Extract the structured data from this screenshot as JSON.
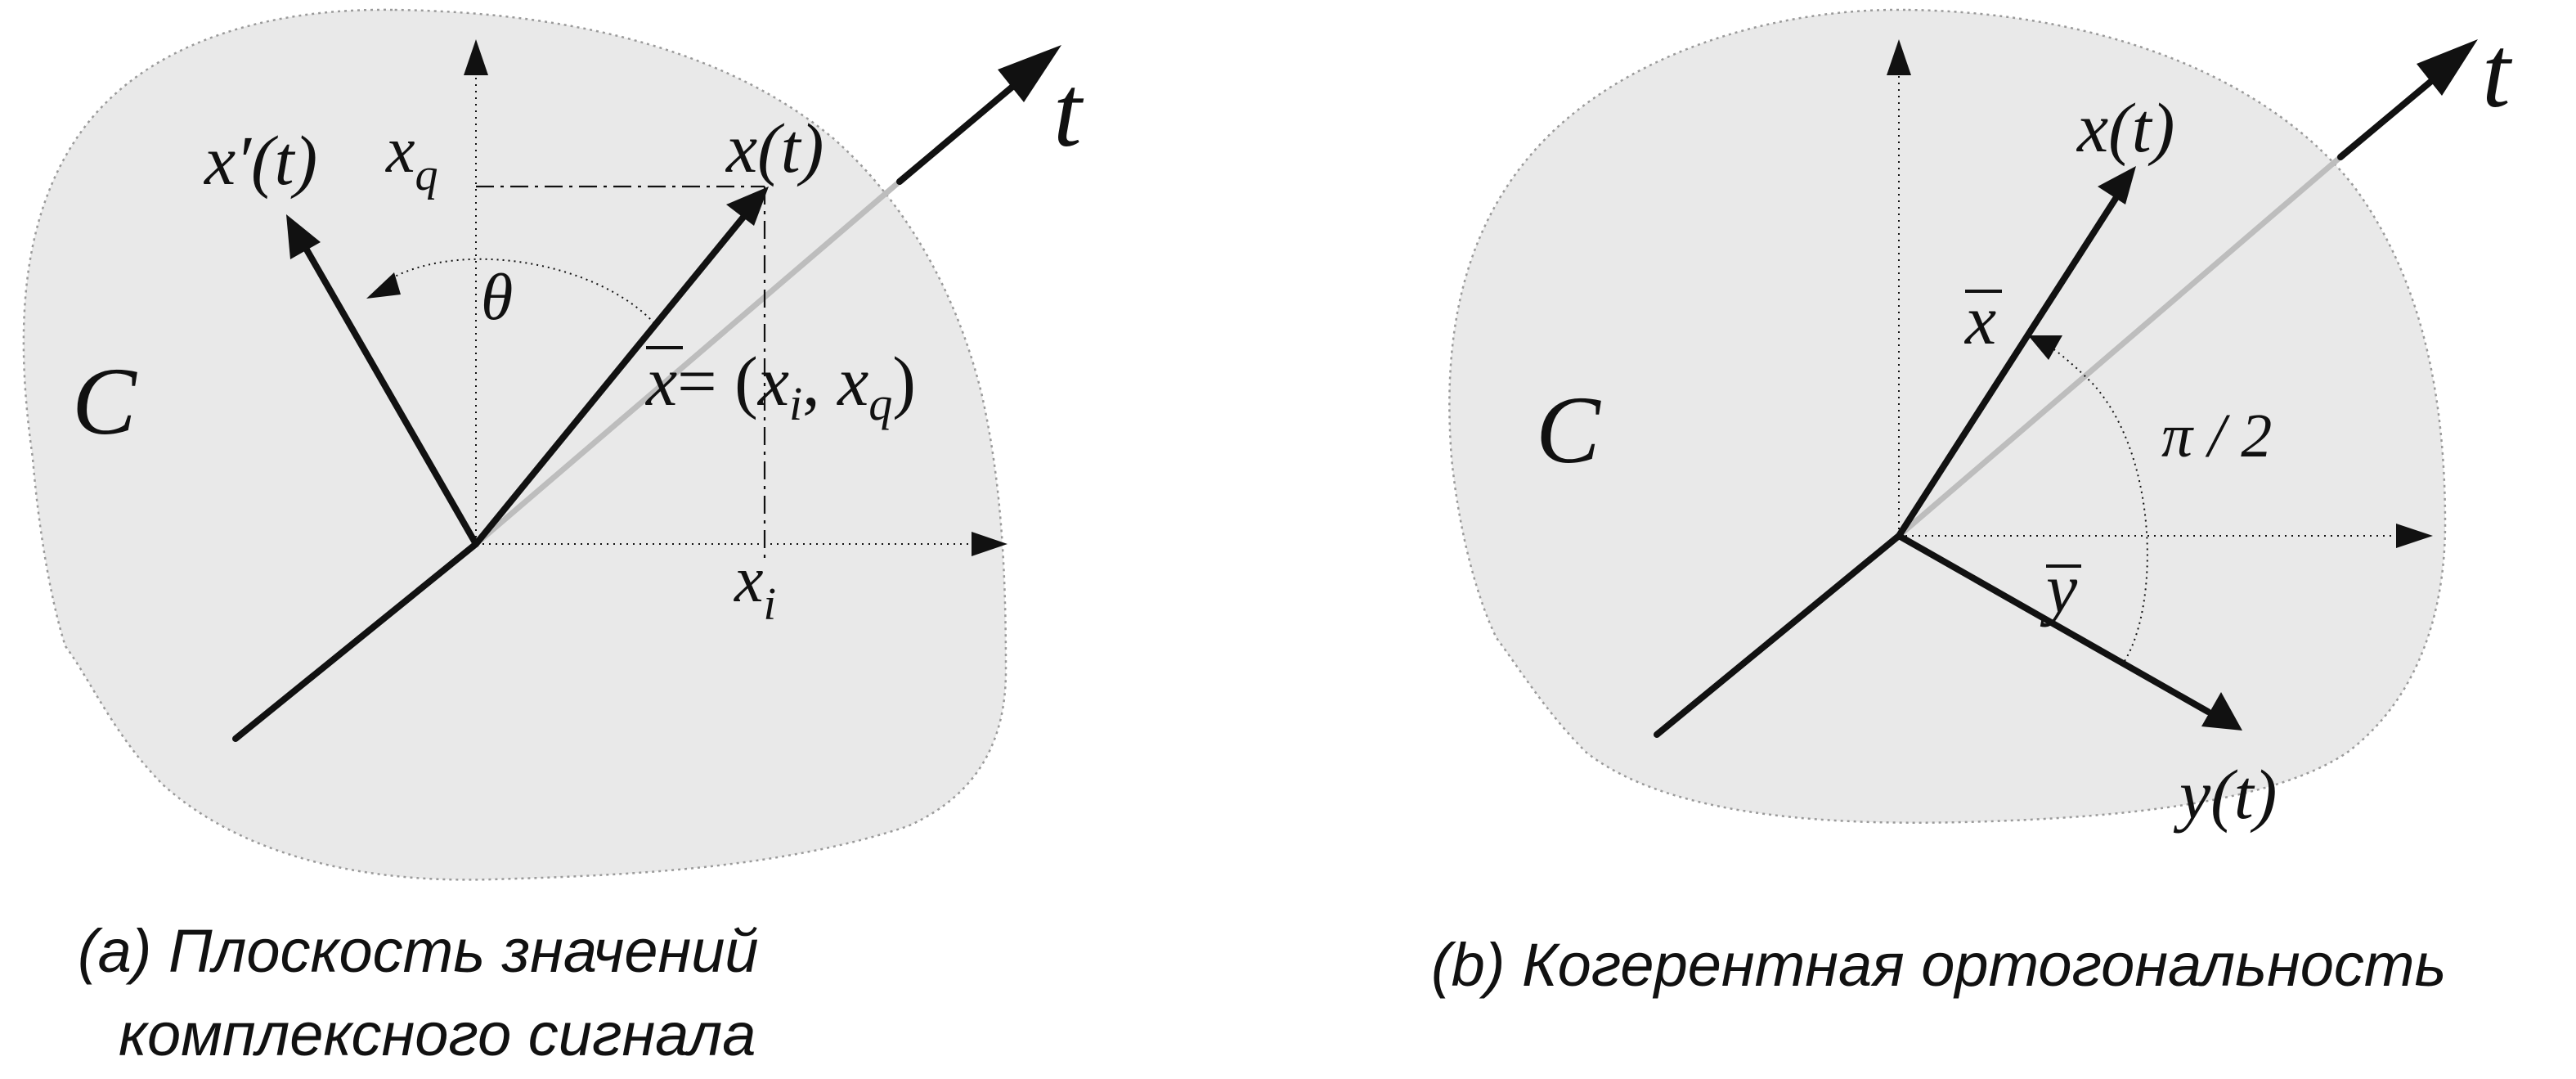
{
  "panel_a": {
    "region_label": "C",
    "axis_t_label": "t",
    "axis_q_label": "x",
    "axis_q_sub": "q",
    "axis_i_label": "x",
    "axis_i_sub": "i",
    "vector_label": "x(t)",
    "rotated_vector_label": "x′(t)",
    "angle_label": "θ",
    "point_vector": "x",
    "point_eq_open": "= (",
    "point_x": "x",
    "point_sub_i": "i",
    "point_comma": ", ",
    "point_sub_q": "q",
    "point_eq_close": ")",
    "caption_line1": "(a) Плоскость значений",
    "caption_line2": "комплексного сигнала"
  },
  "panel_b": {
    "region_label": "C",
    "axis_t_label": "t",
    "vector_x_label": "x(t)",
    "vector_y_label": "y(t)",
    "xbar_label": "x",
    "ybar_label": "y",
    "angle_label": "π / 2",
    "caption": "(b) Когерентная ортогональность"
  }
}
